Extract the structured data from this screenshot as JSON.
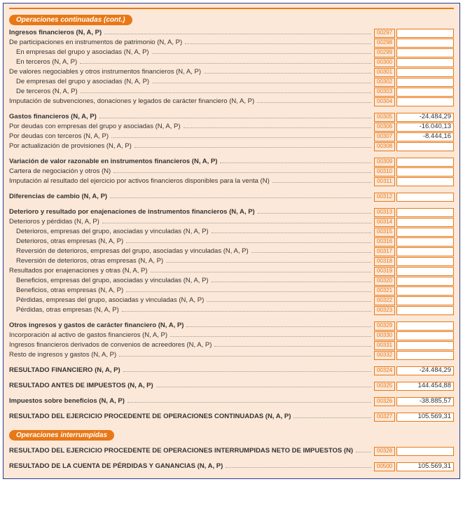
{
  "sections": {
    "cont_header": "Operaciones continuadas (cont.)",
    "interr_header": "Operaciones interrumpidas"
  },
  "rows": [
    {
      "label": "Ingresos financieros (N, A, P)",
      "bold": true,
      "indent": 0,
      "code": "00297",
      "value": "",
      "box": true
    },
    {
      "label": "De participaciones en instrumentos de patrimonio (N, A, P)",
      "indent": 0,
      "code": "00298",
      "value": "",
      "box": true,
      "short": true
    },
    {
      "label": "En empresas del grupo y asociadas (N, A, P)",
      "indent": 1,
      "code": "00299",
      "value": "",
      "box": true,
      "short": true
    },
    {
      "label": "En terceros (N, A, P)",
      "indent": 1,
      "code": "00300",
      "value": "",
      "box": true,
      "short": true
    },
    {
      "label": "De valores negociables y otros instrumentos financieros (N, A, P)",
      "indent": 0,
      "code": "00301",
      "value": "",
      "box": true,
      "short": true
    },
    {
      "label": "De empresas del grupo y asociadas (N, A, P)",
      "indent": 1,
      "code": "00302",
      "value": "",
      "box": true,
      "short": true
    },
    {
      "label": "De terceros (N, A, P)",
      "indent": 1,
      "code": "00303",
      "value": "",
      "box": true,
      "short": true
    },
    {
      "label": "Imputación de subvenciones, donaciones y legados de carácter financiero (N, A, P)",
      "indent": 0,
      "code": "00304",
      "value": "",
      "box": true,
      "short": true
    },
    {
      "spacer": true
    },
    {
      "label": "Gastos financieros (N, A, P)",
      "bold": true,
      "indent": 0,
      "code": "00305",
      "value": "-24.484,29",
      "box": true
    },
    {
      "label": "Por deudas con empresas del grupo y asociadas (N, A, P)",
      "indent": 0,
      "code": "00306",
      "value": "-16.040,13",
      "box": true
    },
    {
      "label": "Por deudas con terceros (N, A, P)",
      "indent": 0,
      "code": "00307",
      "value": "-8.444,16",
      "box": true
    },
    {
      "label": "Por actualización de provisiones (N, A, P)",
      "indent": 0,
      "code": "00308",
      "value": "",
      "box": true
    },
    {
      "spacer": true
    },
    {
      "label": "Variación de valor razonable en instrumentos financieros (N, A, P)",
      "bold": true,
      "indent": 0,
      "code": "00309",
      "value": "",
      "box": true
    },
    {
      "label": "Cartera de negociación y otros (N)",
      "indent": 0,
      "code": "00310",
      "value": "",
      "box": true
    },
    {
      "label": "Imputación al resultado del ejercicio por activos financieros disponibles para la venta (N)",
      "indent": 0,
      "code": "00311",
      "value": "",
      "box": true
    },
    {
      "spacer": true
    },
    {
      "label": "Diferencias de cambio (N, A, P)",
      "bold": true,
      "indent": 0,
      "code": "00312",
      "value": "",
      "box": true
    },
    {
      "spacer": true
    },
    {
      "label": "Deterioro y resultado por enajenaciones de instrumentos financieros (N, A, P)",
      "bold": true,
      "indent": 0,
      "code": "00313",
      "value": "",
      "box": true
    },
    {
      "label": "Deterioros y pérdidas (N, A, P)",
      "indent": 0,
      "code": "00314",
      "value": "",
      "box": true,
      "short": true
    },
    {
      "label": "Deterioros, empresas del grupo, asociadas y vinculadas (N, A, P)",
      "indent": 1,
      "code": "00315",
      "value": "",
      "box": true,
      "short": true
    },
    {
      "label": "Deterioros, otras empresas (N, A, P)",
      "indent": 1,
      "code": "00316",
      "value": "",
      "box": true,
      "short": true
    },
    {
      "label": "Reversión de deterioros, empresas del grupo, asociadas y vinculadas (N, A, P)",
      "indent": 1,
      "code": "00317",
      "value": "",
      "box": true,
      "short": true
    },
    {
      "label": "Reversión de deterioros, otras empresas (N, A, P)",
      "indent": 1,
      "code": "00318",
      "value": "",
      "box": true,
      "short": true
    },
    {
      "label": "Resultados por enajenaciones y otras (N, A, P)",
      "indent": 0,
      "code": "00319",
      "value": "",
      "box": true,
      "short": true
    },
    {
      "label": "Beneficios, empresas del grupo, asociadas y vinculadas (N, A, P)",
      "indent": 1,
      "code": "00320",
      "value": "",
      "box": true,
      "short": true
    },
    {
      "label": "Beneficios, otras empresas (N, A, P)",
      "indent": 1,
      "code": "00321",
      "value": "",
      "box": true,
      "short": true
    },
    {
      "label": "Pérdidas, empresas del grupo, asociadas y vinculadas (N, A, P)",
      "indent": 1,
      "code": "00322",
      "value": "",
      "box": true,
      "short": true
    },
    {
      "label": "Pérdidas, otras empresas (N, A, P)",
      "indent": 1,
      "code": "00323",
      "value": "",
      "box": true,
      "short": true
    },
    {
      "spacer": true
    },
    {
      "label": "Otros ingresos y gastos de carácter financiero (N, A, P)",
      "bold": true,
      "indent": 0,
      "code": "00329",
      "value": "",
      "box": true
    },
    {
      "label": "Incorporación al activo de gastos financieros  (N, A, P)",
      "indent": 0,
      "code": "00330",
      "value": "",
      "box": true,
      "short": true
    },
    {
      "label": "Ingresos financieros derivados de convenios de acreedores (N, A, P)",
      "indent": 0,
      "code": "00331",
      "value": "",
      "box": true,
      "short": true
    },
    {
      "label": "Resto de ingresos y gastos (N, A, P)",
      "indent": 0,
      "code": "00332",
      "value": "",
      "box": true,
      "short": true
    },
    {
      "spacer": true
    },
    {
      "label": "RESULTADO FINANCIERO (N, A, P)",
      "bold": true,
      "indent": 0,
      "code": "00324",
      "value": "-24.484,29",
      "box": true
    },
    {
      "spacer": true
    },
    {
      "label": "RESULTADO ANTES DE IMPUESTOS (N, A, P)",
      "bold": true,
      "indent": 0,
      "code": "00325",
      "value": "144.454,88",
      "box": true
    },
    {
      "spacer": true
    },
    {
      "label": "Impuestos sobre beneficios (N, A, P)",
      "bold": true,
      "indent": 0,
      "code": "00326",
      "value": "-38.885,57",
      "box": true
    },
    {
      "spacer": true
    },
    {
      "label": "RESULTADO DEL EJERCICIO PROCEDENTE DE OPERACIONES CONTINUADAS (N, A, P)",
      "bold": true,
      "indent": 0,
      "code": "00327",
      "value": "105.569,31",
      "box": true
    }
  ],
  "rows2": [
    {
      "label": "RESULTADO DEL EJERCICIO PROCEDENTE DE OPERACIONES INTERRUMPIDAS NETO DE IMPUESTOS (N)",
      "bold": true,
      "indent": 0,
      "code": "00328",
      "value": "",
      "box": true
    },
    {
      "spacer": true
    },
    {
      "label": "RESULTADO DE LA CUENTA DE PÉRDIDAS Y GANANCIAS (N, A, P)",
      "bold": true,
      "indent": 0,
      "code": "00500",
      "value": "105.569,31",
      "box": true
    }
  ],
  "colors": {
    "accent": "#e87817",
    "border": "#2a3a8a",
    "bg": "#fce8d8"
  }
}
